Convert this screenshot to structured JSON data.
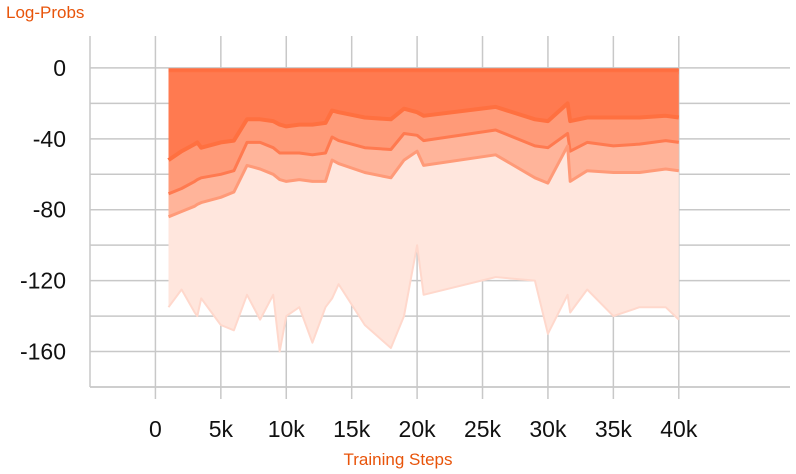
{
  "chart_data": {
    "type": "area",
    "title": "Log-Probs",
    "xlabel": "Training Steps",
    "ylabel": "",
    "xlim": [
      -5000,
      48500
    ],
    "ylim": [
      -180,
      18
    ],
    "x_ticks": [
      0,
      5000,
      10000,
      15000,
      20000,
      25000,
      30000,
      35000,
      40000
    ],
    "x_tick_labels": [
      "0",
      "5k",
      "10k",
      "15k",
      "20k",
      "25k",
      "30k",
      "35k",
      "40k"
    ],
    "y_ticks": [
      0,
      -40,
      -80,
      -120,
      -160
    ],
    "y_tick_labels": [
      "0",
      "-40",
      "-80",
      "-120",
      "-160"
    ],
    "grid": true,
    "legend": "none",
    "x": [
      1000,
      2000,
      3000,
      3200,
      3500,
      5000,
      6000,
      7000,
      8000,
      9000,
      9500,
      10000,
      11000,
      12000,
      13000,
      13500,
      14000,
      16000,
      18000,
      19000,
      20000,
      20500,
      26000,
      29000,
      30000,
      31500,
      31700,
      33000,
      35000,
      37000,
      39000,
      40000
    ],
    "series": [
      {
        "values": [
          -1,
          -1,
          -1,
          -1,
          -1,
          -1,
          -1,
          -1,
          -1,
          -1,
          -1,
          -1,
          -1,
          -1,
          -1,
          -1,
          -1,
          -1,
          -1,
          -1,
          -1,
          -1,
          -1,
          -1,
          -1,
          -1,
          -1,
          -1,
          -1,
          -1,
          -1,
          -1
        ]
      },
      {
        "values": [
          -3,
          -3,
          -3,
          -3,
          -3,
          -3,
          -3,
          -3,
          -3,
          -3,
          -3,
          -3,
          -3,
          -3,
          -3,
          -3,
          -3,
          -3,
          -3,
          -3,
          -3,
          -3,
          -3,
          -3,
          -3,
          -3,
          -3,
          -3,
          -3,
          -3,
          -3,
          -3
        ]
      },
      {
        "values": [
          -52,
          -47,
          -43,
          -42,
          -45,
          -42,
          -41,
          -29,
          -29,
          -30,
          -32,
          -33,
          -32,
          -32,
          -31,
          -24,
          -25,
          -28,
          -29,
          -23,
          -25,
          -27,
          -22,
          -29,
          -30,
          -20,
          -30,
          -28,
          -28,
          -28,
          -27,
          -28
        ]
      },
      {
        "values": [
          -71,
          -68,
          -64,
          -63,
          -62,
          -60,
          -58,
          -42,
          -42,
          -45,
          -48,
          -48,
          -48,
          -49,
          -48,
          -39,
          -41,
          -45,
          -46,
          -37,
          -38,
          -41,
          -35,
          -44,
          -45,
          -37,
          -47,
          -42,
          -44,
          -43,
          -41,
          -42
        ]
      },
      {
        "values": [
          -84,
          -81,
          -78,
          -77,
          -76,
          -73,
          -70,
          -55,
          -57,
          -60,
          -63,
          -64,
          -63,
          -64,
          -64,
          -52,
          -54,
          -59,
          -62,
          -52,
          -47,
          -55,
          -49,
          -62,
          -65,
          -44,
          -64,
          -58,
          -59,
          -59,
          -57,
          -58
        ]
      },
      {
        "values": [
          -135,
          -125,
          -138,
          -140,
          -130,
          -145,
          -148,
          -128,
          -142,
          -128,
          -160,
          -140,
          -135,
          -155,
          -135,
          -130,
          -122,
          -145,
          -158,
          -140,
          -100,
          -128,
          -118,
          -120,
          -150,
          -128,
          -138,
          -125,
          -140,
          -135,
          -135,
          -142
        ]
      }
    ]
  }
}
